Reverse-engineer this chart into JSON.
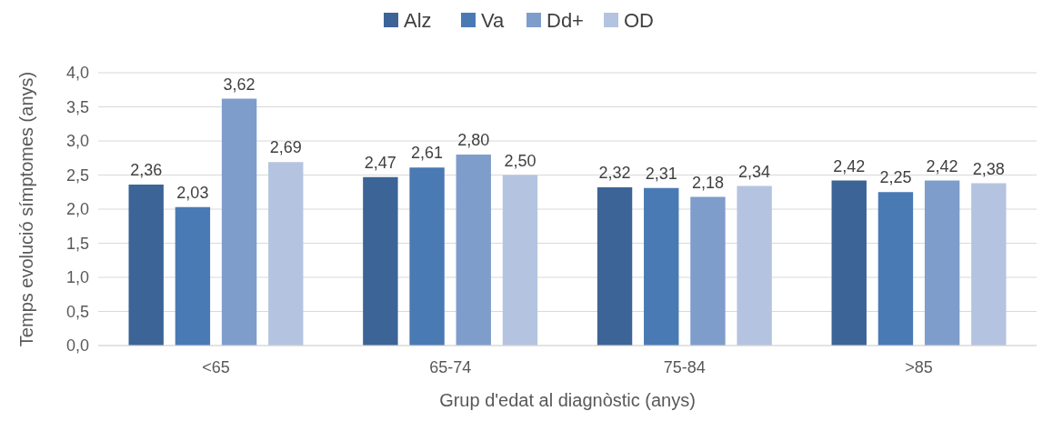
{
  "chart_data": {
    "type": "bar",
    "xlabel": "Grup d'edat al diagnòstic (anys)",
    "ylabel": "Temps evolució símptomes (anys)",
    "categories": [
      "<65",
      "65-74",
      "75-84",
      ">85"
    ],
    "series": [
      {
        "name": "Alz",
        "color": "#3c6496",
        "values": [
          2.36,
          2.47,
          2.32,
          2.42
        ],
        "value_labels": [
          "2,36",
          "2,47",
          "2,32",
          "2,42"
        ]
      },
      {
        "name": "Va",
        "color": "#4a7ab4",
        "values": [
          2.03,
          2.61,
          2.31,
          2.25
        ],
        "value_labels": [
          "2,03",
          "2,61",
          "2,31",
          "2,25"
        ]
      },
      {
        "name": "Dd+",
        "color": "#7f9dcb",
        "values": [
          3.62,
          2.8,
          2.18,
          2.42
        ],
        "value_labels": [
          "3,62",
          "2,80",
          "2,18",
          "2,42"
        ]
      },
      {
        "name": "OD",
        "color": "#b4c4e0",
        "values": [
          2.69,
          2.5,
          2.34,
          2.38
        ],
        "value_labels": [
          "2,69",
          "2,50",
          "2,34",
          "2,38"
        ]
      }
    ],
    "ylim": [
      0,
      4
    ],
    "yticks": [
      {
        "value": 0,
        "label": "0,0"
      },
      {
        "value": 0.5,
        "label": "0,5"
      },
      {
        "value": 1,
        "label": "1,0"
      },
      {
        "value": 1.5,
        "label": "1,5"
      },
      {
        "value": 2,
        "label": "2,0"
      },
      {
        "value": 2.5,
        "label": "2,5"
      },
      {
        "value": 3,
        "label": "3,0"
      },
      {
        "value": 3.5,
        "label": "3,5"
      },
      {
        "value": 4,
        "label": "4,0"
      }
    ],
    "grid": "y",
    "legend": "top"
  }
}
